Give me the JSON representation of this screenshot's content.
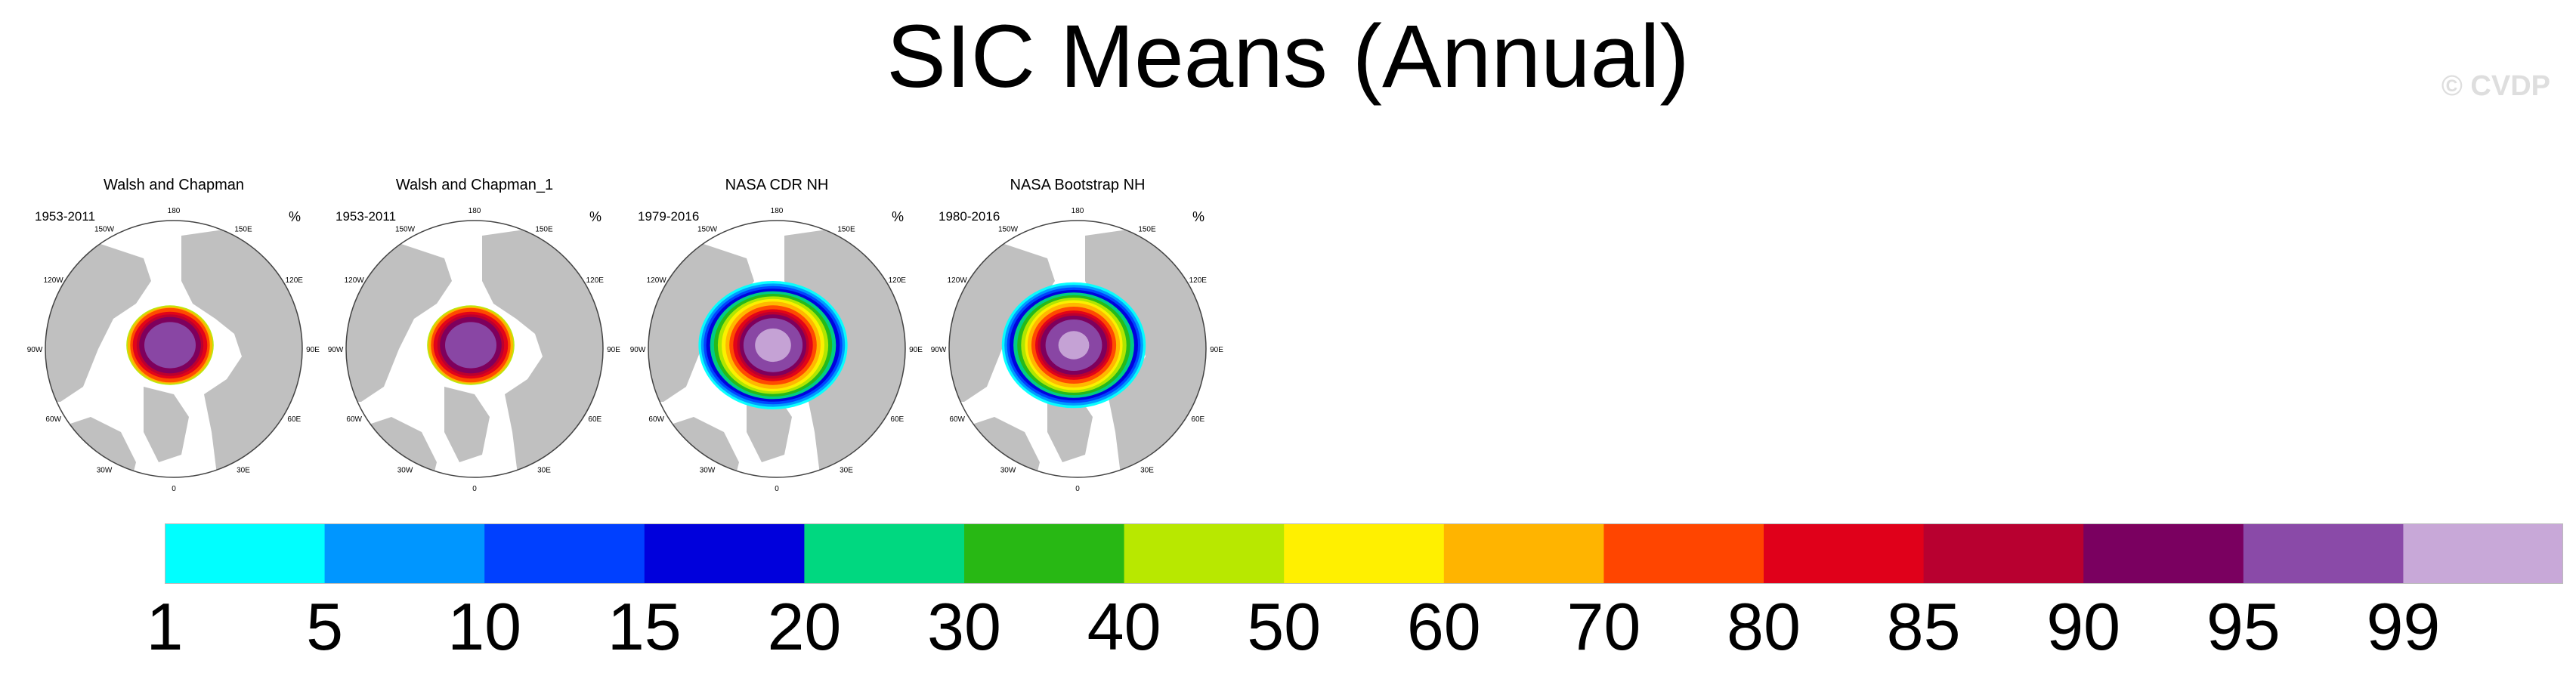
{
  "figure": {
    "title": "SIC Means (Annual)",
    "watermark": "© CVDP",
    "land_color": "#c0c0c0",
    "ocean_color": "#ffffff",
    "grat_labels": [
      "180",
      "150E",
      "120E",
      "90E",
      "60E",
      "30E",
      "0",
      "30W",
      "60W",
      "90W",
      "120W",
      "150W"
    ]
  },
  "chart_data": {
    "type": "heatmap",
    "title": "SIC Means (Annual)",
    "unit": "%",
    "projection": "north polar stereographic",
    "panels": [
      {
        "title": "Walsh and Chapman",
        "years": "1953-2011",
        "unit": "%",
        "bands": [
          {
            "level": 99,
            "color": "#c8a8d8",
            "rx": 0.0,
            "ry": 0.0
          },
          {
            "level": 95,
            "color": "#8a4aa8",
            "rx": 0.2,
            "ry": 0.18
          },
          {
            "level": 90,
            "color": "#7a0060",
            "rx": 0.24,
            "ry": 0.22
          },
          {
            "level": 85,
            "color": "#b80030",
            "rx": 0.26,
            "ry": 0.24
          },
          {
            "level": 80,
            "color": "#e0001a",
            "rx": 0.29,
            "ry": 0.26
          },
          {
            "level": 70,
            "color": "#ff4500",
            "rx": 0.31,
            "ry": 0.29
          },
          {
            "level": 60,
            "color": "#ffb400",
            "rx": 0.33,
            "ry": 0.3
          },
          {
            "level": 50,
            "color": "#fff000",
            "rx": 0.0,
            "ry": 0.0
          },
          {
            "level": 40,
            "color": "#b8e800",
            "rx": 0.34,
            "ry": 0.31
          },
          {
            "level": 30,
            "color": "#28b814",
            "rx": 0.0,
            "ry": 0.0
          },
          {
            "level": 20,
            "color": "#00d880",
            "rx": 0.0,
            "ry": 0.0
          },
          {
            "level": 15,
            "color": "#0000dc",
            "rx": 0.0,
            "ry": 0.0
          },
          {
            "level": 10,
            "color": "#0040ff",
            "rx": 0.0,
            "ry": 0.0
          },
          {
            "level": 5,
            "color": "#0096ff",
            "rx": 0.0,
            "ry": 0.0
          },
          {
            "level": 1,
            "color": "#00ffff",
            "rx": 0.0,
            "ry": 0.0
          }
        ]
      },
      {
        "title": "Walsh and Chapman_1",
        "years": "1953-2011",
        "unit": "%",
        "bands": [
          {
            "level": 99,
            "color": "#c8a8d8",
            "rx": 0.0,
            "ry": 0.0
          },
          {
            "level": 95,
            "color": "#8a4aa8",
            "rx": 0.2,
            "ry": 0.18
          },
          {
            "level": 90,
            "color": "#7a0060",
            "rx": 0.24,
            "ry": 0.22
          },
          {
            "level": 85,
            "color": "#b80030",
            "rx": 0.26,
            "ry": 0.24
          },
          {
            "level": 80,
            "color": "#e0001a",
            "rx": 0.29,
            "ry": 0.26
          },
          {
            "level": 70,
            "color": "#ff4500",
            "rx": 0.31,
            "ry": 0.29
          },
          {
            "level": 60,
            "color": "#ffb400",
            "rx": 0.33,
            "ry": 0.3
          },
          {
            "level": 50,
            "color": "#fff000",
            "rx": 0.0,
            "ry": 0.0
          },
          {
            "level": 40,
            "color": "#b8e800",
            "rx": 0.34,
            "ry": 0.31
          },
          {
            "level": 30,
            "color": "#28b814",
            "rx": 0.0,
            "ry": 0.0
          },
          {
            "level": 20,
            "color": "#00d880",
            "rx": 0.0,
            "ry": 0.0
          },
          {
            "level": 15,
            "color": "#0000dc",
            "rx": 0.0,
            "ry": 0.0
          },
          {
            "level": 10,
            "color": "#0040ff",
            "rx": 0.0,
            "ry": 0.0
          },
          {
            "level": 5,
            "color": "#0096ff",
            "rx": 0.0,
            "ry": 0.0
          },
          {
            "level": 1,
            "color": "#00ffff",
            "rx": 0.0,
            "ry": 0.0
          }
        ]
      },
      {
        "title": "NASA CDR NH",
        "years": "1979-2016",
        "unit": "%",
        "bands": [
          {
            "level": 1,
            "color": "#00ffff",
            "rx": 0.58,
            "ry": 0.5
          },
          {
            "level": 5,
            "color": "#0096ff",
            "rx": 0.56,
            "ry": 0.48
          },
          {
            "level": 10,
            "color": "#0040ff",
            "rx": 0.54,
            "ry": 0.46
          },
          {
            "level": 15,
            "color": "#0000dc",
            "rx": 0.52,
            "ry": 0.44
          },
          {
            "level": 20,
            "color": "#00d880",
            "rx": 0.49,
            "ry": 0.42
          },
          {
            "level": 30,
            "color": "#28b814",
            "rx": 0.46,
            "ry": 0.4
          },
          {
            "level": 40,
            "color": "#b8e800",
            "rx": 0.43,
            "ry": 0.38
          },
          {
            "level": 50,
            "color": "#fff000",
            "rx": 0.4,
            "ry": 0.36
          },
          {
            "level": 60,
            "color": "#ffb400",
            "rx": 0.37,
            "ry": 0.34
          },
          {
            "level": 70,
            "color": "#ff4500",
            "rx": 0.34,
            "ry": 0.31
          },
          {
            "level": 80,
            "color": "#e0001a",
            "rx": 0.31,
            "ry": 0.28
          },
          {
            "level": 85,
            "color": "#b80030",
            "rx": 0.28,
            "ry": 0.26
          },
          {
            "level": 90,
            "color": "#7a0060",
            "rx": 0.26,
            "ry": 0.24
          },
          {
            "level": 95,
            "color": "#8a4aa8",
            "rx": 0.23,
            "ry": 0.21
          },
          {
            "level": 99,
            "color": "#c8a8d8",
            "rx": 0.14,
            "ry": 0.13
          }
        ]
      },
      {
        "title": "NASA Bootstrap NH",
        "years": "1980-2016",
        "unit": "%",
        "bands": [
          {
            "level": 1,
            "color": "#00ffff",
            "rx": 0.56,
            "ry": 0.49
          },
          {
            "level": 5,
            "color": "#0096ff",
            "rx": 0.54,
            "ry": 0.47
          },
          {
            "level": 10,
            "color": "#0040ff",
            "rx": 0.52,
            "ry": 0.45
          },
          {
            "level": 15,
            "color": "#0000dc",
            "rx": 0.5,
            "ry": 0.43
          },
          {
            "level": 20,
            "color": "#00d880",
            "rx": 0.47,
            "ry": 0.41
          },
          {
            "level": 30,
            "color": "#28b814",
            "rx": 0.44,
            "ry": 0.39
          },
          {
            "level": 40,
            "color": "#b8e800",
            "rx": 0.41,
            "ry": 0.37
          },
          {
            "level": 50,
            "color": "#fff000",
            "rx": 0.38,
            "ry": 0.35
          },
          {
            "level": 60,
            "color": "#ffb400",
            "rx": 0.36,
            "ry": 0.33
          },
          {
            "level": 70,
            "color": "#ff4500",
            "rx": 0.33,
            "ry": 0.3
          },
          {
            "level": 80,
            "color": "#e0001a",
            "rx": 0.3,
            "ry": 0.27
          },
          {
            "level": 85,
            "color": "#b80030",
            "rx": 0.28,
            "ry": 0.25
          },
          {
            "level": 90,
            "color": "#7a0060",
            "rx": 0.26,
            "ry": 0.23
          },
          {
            "level": 95,
            "color": "#8a4aa8",
            "rx": 0.22,
            "ry": 0.2
          },
          {
            "level": 99,
            "color": "#c8a8d8",
            "rx": 0.12,
            "ry": 0.11
          }
        ]
      }
    ],
    "colorbar": {
      "levels": [
        "1",
        "5",
        "10",
        "15",
        "20",
        "30",
        "40",
        "50",
        "60",
        "70",
        "80",
        "85",
        "90",
        "95",
        "99"
      ],
      "colors": [
        "#00ffff",
        "#0096ff",
        "#0040ff",
        "#0000dc",
        "#00d880",
        "#28b814",
        "#b8e800",
        "#fff000",
        "#ffb400",
        "#ff4500",
        "#e0001a",
        "#b80030",
        "#7a0060",
        "#8a4aa8",
        "#c8a8d8"
      ]
    },
    "grid": false,
    "legend": "bottom (horizontal colorbar)"
  }
}
